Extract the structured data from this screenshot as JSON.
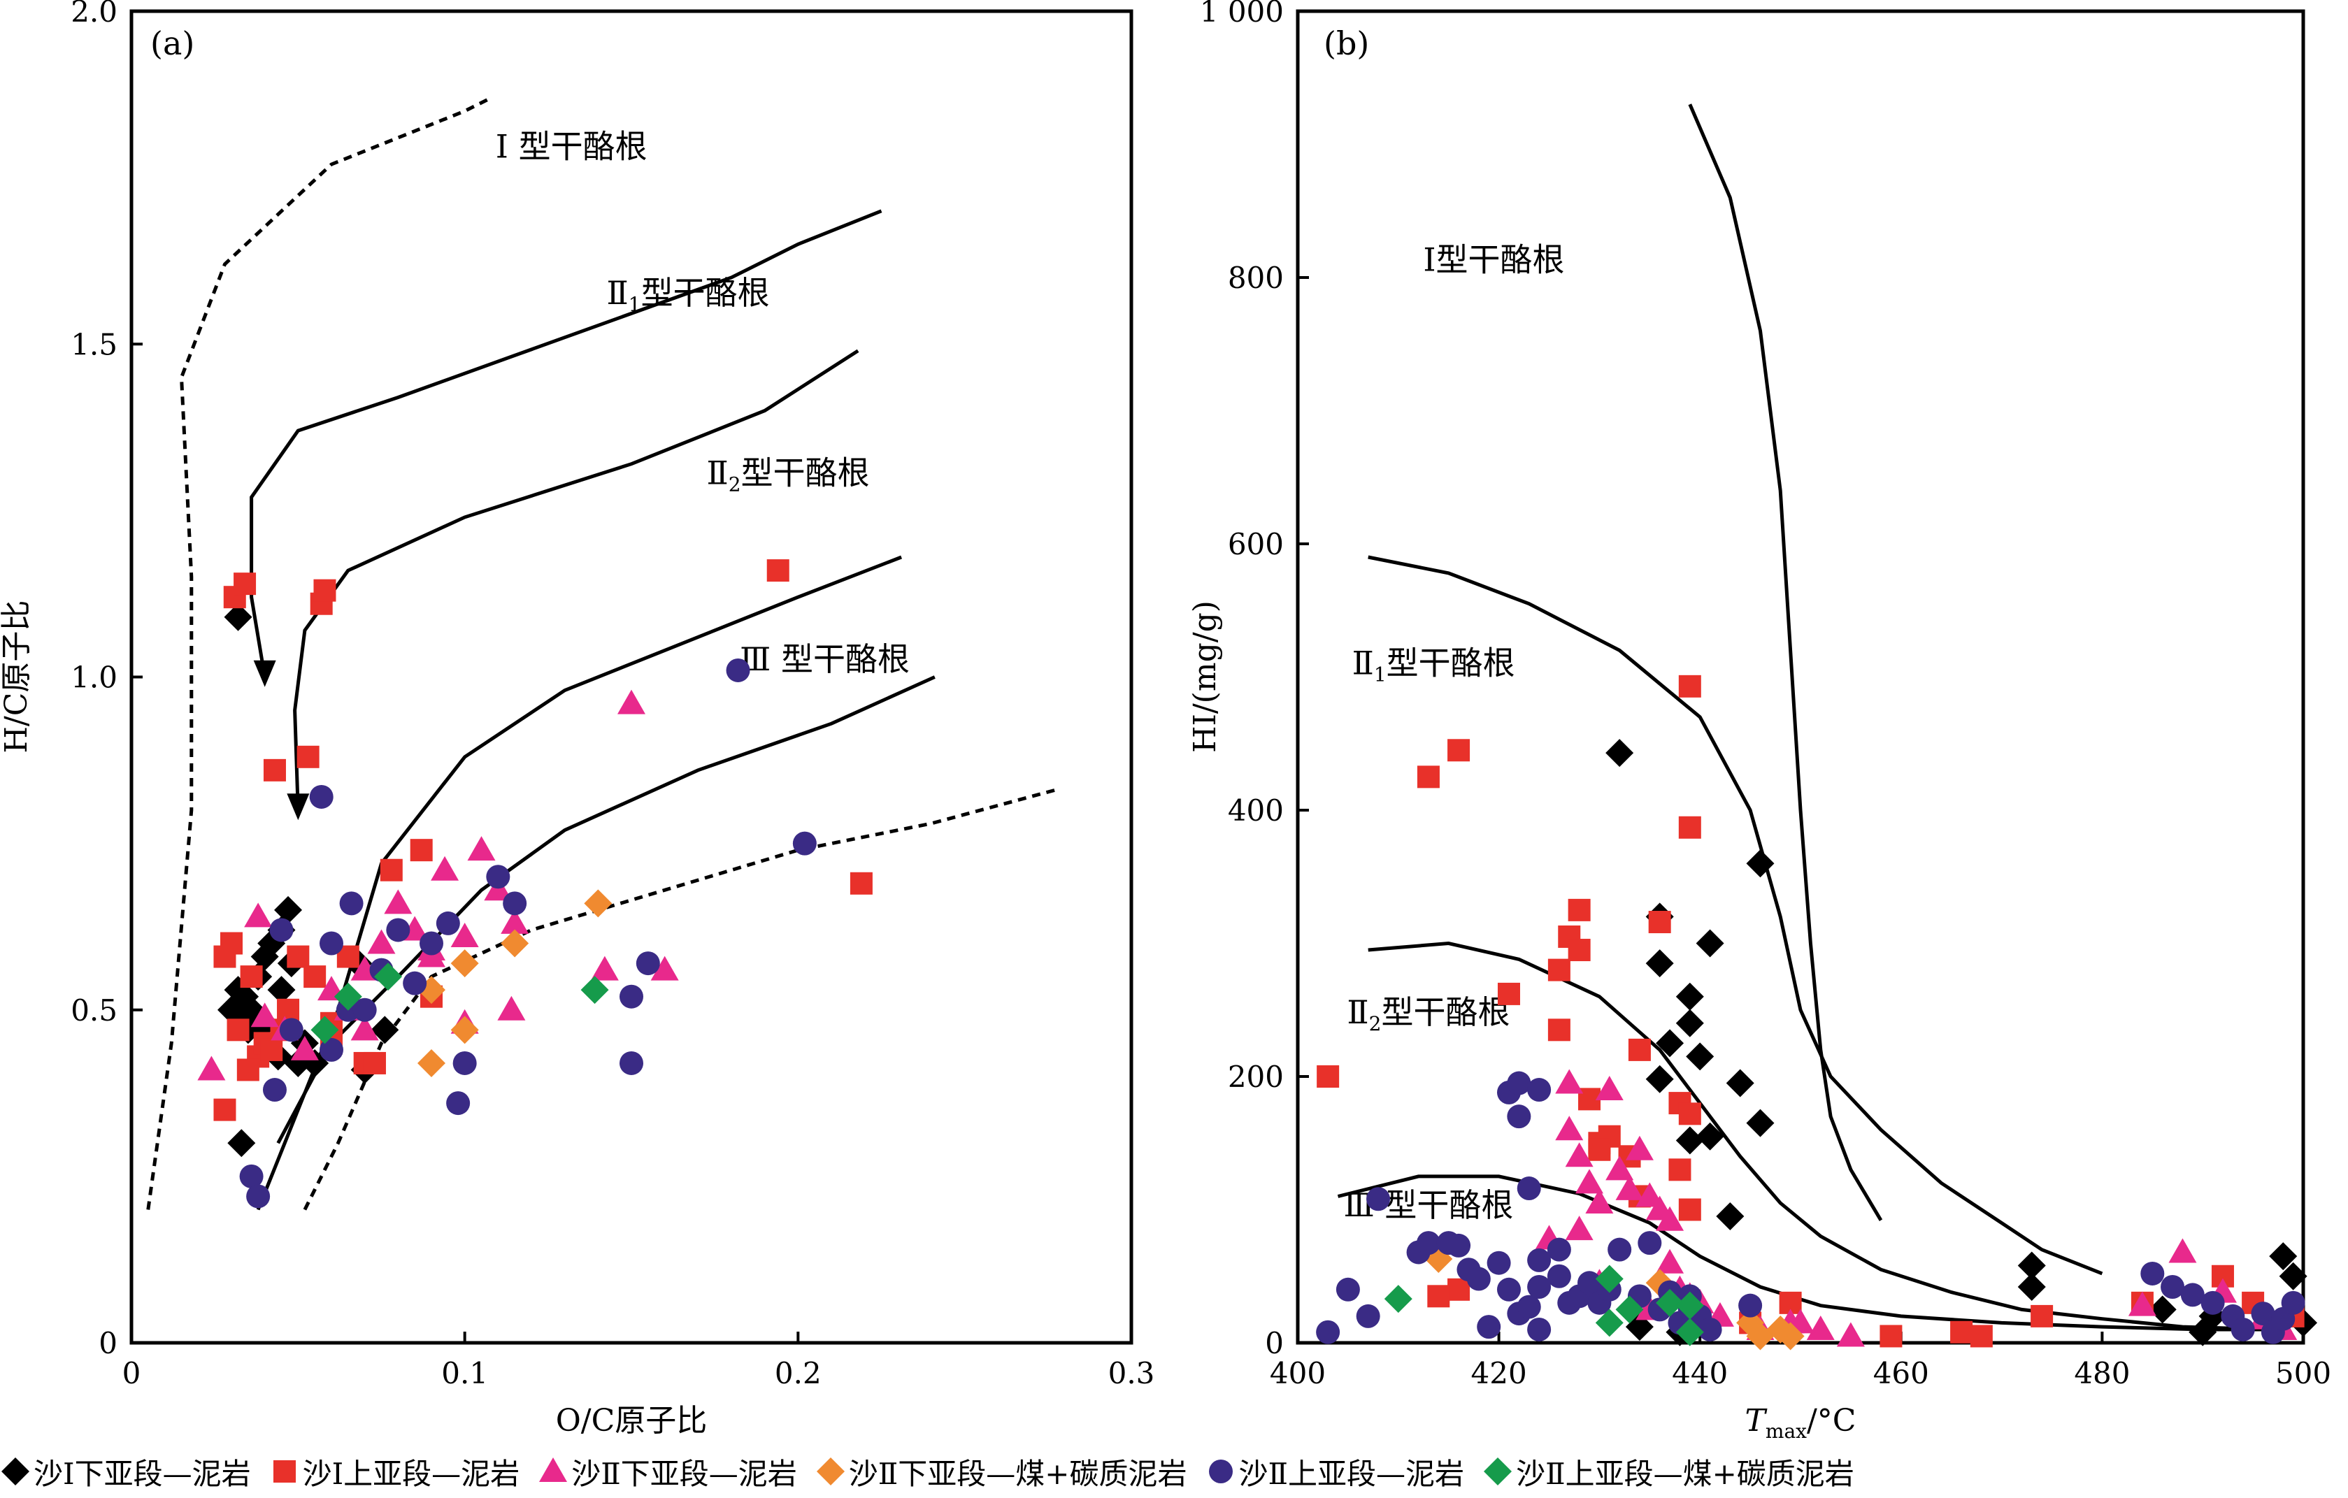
{
  "chart_data": [
    {
      "panel": "(a)",
      "type": "scatter",
      "xlabel": "O/C原子比",
      "ylabel": "H/C原子比",
      "xlim": [
        0,
        0.3
      ],
      "ylim": [
        0,
        2.0
      ],
      "xticks": [
        "0",
        "0.1",
        "0.2",
        "0.3"
      ],
      "yticks": [
        "0",
        "0.5",
        "1.0",
        "1.5",
        "2.0"
      ],
      "regions": [
        "Ⅰ 型干酪根",
        "Ⅱ1型干酪根",
        "Ⅱ2型干酪根",
        "Ⅲ 型干酪根"
      ],
      "series": [
        {
          "name": "沙Ⅰ下亚段—泥岩",
          "marker": "diamond",
          "color": "#000000",
          "x": [
            0.032,
            0.03,
            0.032,
            0.034,
            0.033,
            0.035,
            0.036,
            0.038,
            0.04,
            0.042,
            0.045,
            0.045,
            0.047,
            0.048,
            0.05,
            0.052,
            0.055,
            0.04,
            0.044,
            0.068,
            0.07,
            0.076,
            0.033
          ],
          "y": [
            1.09,
            0.5,
            0.53,
            0.52,
            0.48,
            0.47,
            0.5,
            0.55,
            0.58,
            0.6,
            0.62,
            0.53,
            0.65,
            0.57,
            0.42,
            0.45,
            0.42,
            0.48,
            0.43,
            0.57,
            0.41,
            0.47,
            0.3
          ]
        },
        {
          "name": "沙Ⅰ上亚段—泥岩",
          "marker": "square",
          "color": "#e8312a",
          "x": [
            0.031,
            0.034,
            0.057,
            0.058,
            0.053,
            0.043,
            0.194,
            0.219,
            0.028,
            0.03,
            0.032,
            0.036,
            0.038,
            0.04,
            0.047,
            0.05,
            0.055,
            0.06,
            0.065,
            0.07,
            0.073,
            0.078,
            0.087,
            0.09,
            0.028,
            0.035,
            0.045,
            0.06,
            0.042
          ],
          "y": [
            1.12,
            1.14,
            1.11,
            1.13,
            0.88,
            0.86,
            1.16,
            0.69,
            0.58,
            0.6,
            0.47,
            0.55,
            0.43,
            0.45,
            0.5,
            0.58,
            0.55,
            0.45,
            0.58,
            0.42,
            0.42,
            0.71,
            0.74,
            0.52,
            0.35,
            0.41,
            0.47,
            0.48,
            0.44
          ]
        },
        {
          "name": "沙Ⅱ下亚段—泥岩",
          "marker": "triangle",
          "color": "#e8298c",
          "x": [
            0.024,
            0.038,
            0.046,
            0.06,
            0.065,
            0.07,
            0.075,
            0.08,
            0.085,
            0.09,
            0.094,
            0.1,
            0.105,
            0.11,
            0.115,
            0.15,
            0.142,
            0.16,
            0.114,
            0.1,
            0.052,
            0.07,
            0.09,
            0.04
          ],
          "y": [
            0.41,
            0.64,
            0.47,
            0.53,
            0.5,
            0.56,
            0.6,
            0.66,
            0.62,
            0.58,
            0.71,
            0.61,
            0.74,
            0.68,
            0.63,
            0.96,
            0.56,
            0.56,
            0.5,
            0.48,
            0.44,
            0.47,
            0.59,
            0.49
          ]
        },
        {
          "name": "沙Ⅱ下亚段—煤+碳质泥岩",
          "marker": "diamond",
          "color": "#f08a30",
          "x": [
            0.09,
            0.1,
            0.1,
            0.115,
            0.14,
            0.09
          ],
          "y": [
            0.53,
            0.57,
            0.47,
            0.6,
            0.66,
            0.42
          ]
        },
        {
          "name": "沙Ⅱ上亚段—泥岩",
          "marker": "circle",
          "color": "#3a2b85",
          "x": [
            0.036,
            0.038,
            0.043,
            0.045,
            0.048,
            0.057,
            0.06,
            0.066,
            0.08,
            0.085,
            0.09,
            0.095,
            0.11,
            0.115,
            0.155,
            0.15,
            0.182,
            0.202,
            0.1,
            0.098,
            0.15,
            0.065,
            0.06,
            0.07,
            0.075
          ],
          "y": [
            0.25,
            0.22,
            0.38,
            0.62,
            0.47,
            0.82,
            0.6,
            0.66,
            0.62,
            0.54,
            0.6,
            0.63,
            0.7,
            0.66,
            0.57,
            0.52,
            1.01,
            0.75,
            0.42,
            0.36,
            0.42,
            0.5,
            0.44,
            0.5,
            0.56
          ]
        },
        {
          "name": "沙Ⅱ上亚段—煤+碳质泥岩",
          "marker": "diamond",
          "color": "#169b4b",
          "x": [
            0.058,
            0.065,
            0.077,
            0.139
          ],
          "y": [
            0.47,
            0.52,
            0.55,
            0.53
          ]
        }
      ]
    },
    {
      "panel": "(b)",
      "type": "scatter",
      "xlabel": "Tmax/°C",
      "ylabel": "HI/(mg/g)",
      "xlim": [
        400,
        500
      ],
      "ylim": [
        0,
        1000
      ],
      "xticks": [
        "400",
        "420",
        "440",
        "460",
        "480",
        "500"
      ],
      "yticks": [
        "0",
        "200",
        "400",
        "600",
        "800",
        "1 000"
      ],
      "regions": [
        "Ⅰ型干酪根",
        "Ⅱ1型干酪根",
        "Ⅱ2型干酪根",
        "Ⅲ 型干酪根"
      ],
      "series": [
        {
          "name": "沙Ⅰ下亚段—泥岩",
          "marker": "diamond",
          "color": "#000000",
          "x": [
            432,
            446,
            436,
            436,
            441,
            437,
            439,
            439,
            440,
            441,
            444,
            446,
            436,
            439,
            443,
            473,
            473,
            498,
            499,
            500,
            486,
            490,
            434,
            438,
            491
          ],
          "y": [
            443,
            360,
            320,
            285,
            300,
            225,
            260,
            240,
            215,
            155,
            195,
            165,
            198,
            152,
            95,
            58,
            42,
            65,
            50,
            15,
            25,
            8,
            12,
            8,
            20
          ]
        },
        {
          "name": "沙Ⅰ上亚段—泥岩",
          "marker": "square",
          "color": "#e8312a",
          "x": [
            403,
            413,
            416,
            439,
            439,
            421,
            426,
            427,
            428,
            428,
            426,
            429,
            430,
            433,
            434,
            436,
            438,
            439,
            438,
            434,
            439,
            431,
            430,
            416,
            414,
            449,
            459,
            466,
            468,
            474,
            484,
            492,
            495,
            499,
            445
          ],
          "y": [
            200,
            425,
            445,
            493,
            387,
            262,
            280,
            305,
            325,
            295,
            235,
            183,
            150,
            140,
            220,
            316,
            180,
            172,
            130,
            110,
            100,
            155,
            145,
            40,
            35,
            30,
            5,
            8,
            5,
            20,
            30,
            50,
            30,
            20,
            15
          ]
        },
        {
          "name": "沙Ⅱ下亚段—泥岩",
          "marker": "triangle",
          "color": "#e8298c",
          "x": [
            427,
            427,
            428,
            429,
            430,
            431,
            432,
            433,
            434,
            435,
            436,
            437,
            437,
            438,
            439,
            440,
            442,
            446,
            449,
            452,
            455,
            484,
            488,
            492,
            496,
            498,
            428,
            425,
            430,
            435,
            450
          ],
          "y": [
            195,
            160,
            140,
            120,
            105,
            190,
            130,
            115,
            145,
            110,
            100,
            92,
            60,
            40,
            35,
            30,
            20,
            10,
            15,
            10,
            5,
            28,
            68,
            38,
            18,
            10,
            85,
            78,
            45,
            25,
            15
          ]
        },
        {
          "name": "沙Ⅱ下亚段—煤+碳质泥岩",
          "marker": "diamond",
          "color": "#f08a30",
          "x": [
            414,
            436,
            439,
            446,
            448,
            449,
            445
          ],
          "y": [
            63,
            45,
            15,
            5,
            10,
            5,
            15
          ]
        },
        {
          "name": "沙Ⅱ上亚段—泥岩",
          "marker": "circle",
          "color": "#3a2b85",
          "x": [
            403,
            405,
            407,
            408,
            412,
            413,
            415,
            416,
            417,
            418,
            419,
            420,
            421,
            421,
            422,
            422,
            423,
            423,
            424,
            424,
            426,
            426,
            427,
            428,
            429,
            430,
            431,
            432,
            434,
            435,
            436,
            437,
            438,
            439,
            439,
            440,
            441,
            445,
            424,
            422,
            424,
            485,
            487,
            489,
            491,
            493,
            494,
            496,
            497,
            498,
            499
          ],
          "y": [
            8,
            40,
            20,
            108,
            68,
            75,
            75,
            73,
            55,
            48,
            12,
            60,
            40,
            188,
            195,
            22,
            116,
            27,
            42,
            190,
            50,
            70,
            30,
            35,
            45,
            30,
            40,
            70,
            35,
            75,
            25,
            38,
            15,
            35,
            25,
            20,
            10,
            28,
            10,
            170,
            62,
            52,
            42,
            36,
            30,
            20,
            10,
            22,
            8,
            18,
            30
          ]
        },
        {
          "name": "沙Ⅱ上亚段—煤+碳质泥岩",
          "marker": "diamond",
          "color": "#169b4b",
          "x": [
            410,
            431,
            431,
            433,
            437,
            439,
            439
          ],
          "y": [
            33,
            48,
            15,
            25,
            30,
            28,
            8
          ]
        }
      ]
    }
  ]
}
